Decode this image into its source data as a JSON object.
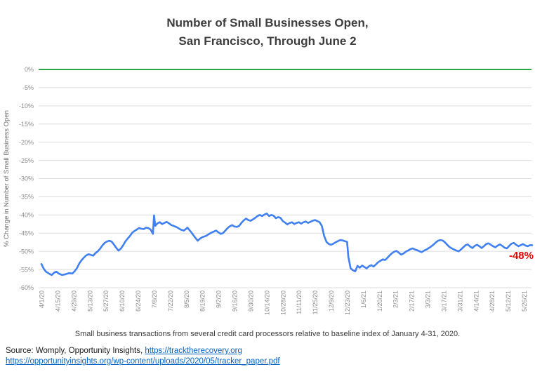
{
  "title": {
    "line1": "Number of Small Businesses Open,",
    "line2": "San Francisco, Through June 2"
  },
  "caption": "Small business transactions from several credit card processors relative to baseline index of January 4-31, 2020.",
  "source": {
    "prefix": "Source: Womply, Opportunity Insights, ",
    "link1": "https://tracktherecovery.org",
    "link2": "https://opportunityinsights.org/wp-content/uploads/2020/05/tracker_paper.pdf"
  },
  "chart_data": {
    "type": "line",
    "title": "Number of Small Businesses Open, San Francisco, Through June 2",
    "ylabel": "% Change in Number of Small Business Open",
    "xlabel": "",
    "ylim": [
      -60,
      0
    ],
    "grid": true,
    "legend": false,
    "line_color": "#4080f0",
    "zero_line_color": "#2aa84a",
    "grid_color": "#dcdcdc",
    "axis_text_color": "#8c8c8c",
    "annotation": {
      "text": "-48%",
      "color": "#ee0000"
    },
    "x_start": "4/1/20",
    "x_end": "6/2/21",
    "ytick_labels": [
      "0%",
      "-5%",
      "-10%",
      "-15%",
      "-20%",
      "-25%",
      "-30%",
      "-35%",
      "-40%",
      "-45%",
      "-50%",
      "-55%",
      "-60%"
    ],
    "xtick_labels": [
      "4/1/20",
      "4/15/20",
      "4/29/20",
      "5/13/20",
      "5/27/20",
      "6/10/20",
      "6/24/20",
      "7/8/20",
      "7/22/20",
      "8/5/20",
      "8/19/20",
      "9/2/20",
      "9/16/20",
      "9/30/20",
      "10/14/20",
      "10/28/20",
      "11/11/20",
      "11/25/20",
      "12/9/20",
      "12/23/20",
      "1/6/21",
      "1/20/21",
      "2/3/21",
      "2/17/21",
      "3/3/21",
      "3/17/21",
      "3/31/21",
      "4/14/21",
      "4/28/21",
      "5/12/21",
      "5/26/21"
    ],
    "series": [
      {
        "name": "San Francisco",
        "points": [
          [
            "4/1/20",
            -53.5
          ],
          [
            "4/3/20",
            -54.8
          ],
          [
            "4/5/20",
            -55.6
          ],
          [
            "4/8/20",
            -56.2
          ],
          [
            "4/10/20",
            -56.5
          ],
          [
            "4/12/20",
            -55.9
          ],
          [
            "4/14/20",
            -55.6
          ],
          [
            "4/16/20",
            -56.1
          ],
          [
            "4/19/20",
            -56.5
          ],
          [
            "4/22/20",
            -56.3
          ],
          [
            "4/25/20",
            -56.0
          ],
          [
            "4/28/20",
            -56.1
          ],
          [
            "4/30/20",
            -55.4
          ],
          [
            "5/2/20",
            -54.6
          ],
          [
            "5/4/20",
            -53.3
          ],
          [
            "5/6/20",
            -52.4
          ],
          [
            "5/8/20",
            -51.7
          ],
          [
            "5/10/20",
            -51.1
          ],
          [
            "5/12/20",
            -50.8
          ],
          [
            "5/14/20",
            -51.0
          ],
          [
            "5/16/20",
            -51.2
          ],
          [
            "5/18/20",
            -50.5
          ],
          [
            "5/20/20",
            -50.0
          ],
          [
            "5/22/20",
            -49.3
          ],
          [
            "5/24/20",
            -48.4
          ],
          [
            "5/26/20",
            -47.7
          ],
          [
            "5/28/20",
            -47.3
          ],
          [
            "5/30/20",
            -47.1
          ],
          [
            "6/1/20",
            -47.3
          ],
          [
            "6/3/20",
            -48.1
          ],
          [
            "6/5/20",
            -49.0
          ],
          [
            "6/7/20",
            -49.8
          ],
          [
            "6/9/20",
            -49.3
          ],
          [
            "6/11/20",
            -48.4
          ],
          [
            "6/13/20",
            -47.3
          ],
          [
            "6/15/20",
            -46.5
          ],
          [
            "6/17/20",
            -45.8
          ],
          [
            "6/19/20",
            -44.9
          ],
          [
            "6/21/20",
            -44.4
          ],
          [
            "6/23/20",
            -44.0
          ],
          [
            "6/25/20",
            -43.6
          ],
          [
            "6/27/20",
            -43.8
          ],
          [
            "6/29/20",
            -43.9
          ],
          [
            "7/1/20",
            -43.5
          ],
          [
            "7/3/20",
            -43.6
          ],
          [
            "7/5/20",
            -44.0
          ],
          [
            "7/7/20",
            -45.2
          ],
          [
            "7/8/20",
            -40.1
          ],
          [
            "7/9/20",
            -43.0
          ],
          [
            "7/11/20",
            -42.3
          ],
          [
            "7/13/20",
            -42.0
          ],
          [
            "7/15/20",
            -42.5
          ],
          [
            "7/17/20",
            -42.2
          ],
          [
            "7/19/20",
            -41.9
          ],
          [
            "7/21/20",
            -42.3
          ],
          [
            "7/23/20",
            -42.8
          ],
          [
            "7/25/20",
            -43.0
          ],
          [
            "7/28/20",
            -43.4
          ],
          [
            "7/31/20",
            -44.0
          ],
          [
            "8/3/20",
            -44.3
          ],
          [
            "8/6/20",
            -43.5
          ],
          [
            "8/9/20",
            -44.6
          ],
          [
            "8/12/20",
            -45.9
          ],
          [
            "8/15/20",
            -47.1
          ],
          [
            "8/17/20",
            -46.5
          ],
          [
            "8/19/20",
            -46.1
          ],
          [
            "8/22/20",
            -45.8
          ],
          [
            "8/25/20",
            -45.2
          ],
          [
            "8/28/20",
            -44.7
          ],
          [
            "8/31/20",
            -44.3
          ],
          [
            "9/2/20",
            -44.8
          ],
          [
            "9/4/20",
            -45.2
          ],
          [
            "9/6/20",
            -45.0
          ],
          [
            "9/8/20",
            -44.3
          ],
          [
            "9/10/20",
            -43.6
          ],
          [
            "9/12/20",
            -43.1
          ],
          [
            "9/14/20",
            -42.8
          ],
          [
            "9/16/20",
            -43.2
          ],
          [
            "9/18/20",
            -43.3
          ],
          [
            "9/20/20",
            -43.0
          ],
          [
            "9/22/20",
            -42.2
          ],
          [
            "9/24/20",
            -41.5
          ],
          [
            "9/26/20",
            -41.0
          ],
          [
            "9/28/20",
            -41.4
          ],
          [
            "9/30/20",
            -41.6
          ],
          [
            "10/2/20",
            -41.2
          ],
          [
            "10/4/20",
            -40.8
          ],
          [
            "10/6/20",
            -40.3
          ],
          [
            "10/8/20",
            -40.0
          ],
          [
            "10/10/20",
            -40.3
          ],
          [
            "10/12/20",
            -39.9
          ],
          [
            "10/14/20",
            -39.6
          ],
          [
            "10/16/20",
            -40.3
          ],
          [
            "10/18/20",
            -40.0
          ],
          [
            "10/20/20",
            -40.2
          ],
          [
            "10/22/20",
            -40.9
          ],
          [
            "10/24/20",
            -40.6
          ],
          [
            "10/26/20",
            -40.8
          ],
          [
            "10/28/20",
            -41.7
          ],
          [
            "10/30/20",
            -42.1
          ],
          [
            "11/1/20",
            -42.6
          ],
          [
            "11/3/20",
            -42.2
          ],
          [
            "11/5/20",
            -42.0
          ],
          [
            "11/7/20",
            -42.5
          ],
          [
            "11/9/20",
            -42.2
          ],
          [
            "11/11/20",
            -42.0
          ],
          [
            "11/13/20",
            -42.4
          ],
          [
            "11/15/20",
            -42.0
          ],
          [
            "11/17/20",
            -41.8
          ],
          [
            "11/19/20",
            -42.2
          ],
          [
            "11/21/20",
            -41.9
          ],
          [
            "11/23/20",
            -41.6
          ],
          [
            "11/25/20",
            -41.4
          ],
          [
            "11/27/20",
            -41.7
          ],
          [
            "11/29/20",
            -42.0
          ],
          [
            "12/1/20",
            -43.0
          ],
          [
            "12/3/20",
            -45.8
          ],
          [
            "12/5/20",
            -47.4
          ],
          [
            "12/7/20",
            -48.0
          ],
          [
            "12/9/20",
            -48.2
          ],
          [
            "12/11/20",
            -47.9
          ],
          [
            "12/13/20",
            -47.5
          ],
          [
            "12/15/20",
            -47.2
          ],
          [
            "12/17/20",
            -46.9
          ],
          [
            "12/19/20",
            -47.0
          ],
          [
            "12/21/20",
            -47.2
          ],
          [
            "12/23/20",
            -47.4
          ],
          [
            "12/24/20",
            -51.5
          ],
          [
            "12/26/20",
            -54.7
          ],
          [
            "12/28/20",
            -55.2
          ],
          [
            "12/30/20",
            -55.5
          ],
          [
            "1/1/21",
            -54.0
          ],
          [
            "1/3/21",
            -54.5
          ],
          [
            "1/5/21",
            -53.9
          ],
          [
            "1/7/21",
            -54.3
          ],
          [
            "1/9/21",
            -54.7
          ],
          [
            "1/11/21",
            -54.1
          ],
          [
            "1/13/21",
            -53.8
          ],
          [
            "1/15/21",
            -54.2
          ],
          [
            "1/17/21",
            -53.6
          ],
          [
            "1/19/21",
            -53.0
          ],
          [
            "1/21/21",
            -52.6
          ],
          [
            "1/23/21",
            -52.2
          ],
          [
            "1/25/21",
            -52.4
          ],
          [
            "1/27/21",
            -51.8
          ],
          [
            "1/29/21",
            -51.1
          ],
          [
            "1/31/21",
            -50.5
          ],
          [
            "2/2/21",
            -50.1
          ],
          [
            "2/4/21",
            -49.9
          ],
          [
            "2/6/21",
            -50.4
          ],
          [
            "2/8/21",
            -50.9
          ],
          [
            "2/10/21",
            -50.6
          ],
          [
            "2/12/21",
            -50.1
          ],
          [
            "2/14/21",
            -49.8
          ],
          [
            "2/16/21",
            -49.4
          ],
          [
            "2/18/21",
            -49.2
          ],
          [
            "2/20/21",
            -49.5
          ],
          [
            "2/22/21",
            -49.7
          ],
          [
            "2/24/21",
            -50.0
          ],
          [
            "2/26/21",
            -50.2
          ],
          [
            "2/28/21",
            -49.8
          ],
          [
            "3/2/21",
            -49.5
          ],
          [
            "3/4/21",
            -49.1
          ],
          [
            "3/6/21",
            -48.7
          ],
          [
            "3/8/21",
            -48.2
          ],
          [
            "3/10/21",
            -47.6
          ],
          [
            "3/12/21",
            -47.1
          ],
          [
            "3/14/21",
            -46.9
          ],
          [
            "3/16/21",
            -47.0
          ],
          [
            "3/18/21",
            -47.5
          ],
          [
            "3/20/21",
            -48.2
          ],
          [
            "3/22/21",
            -48.8
          ],
          [
            "3/24/21",
            -49.2
          ],
          [
            "3/26/21",
            -49.5
          ],
          [
            "3/28/21",
            -49.8
          ],
          [
            "3/30/21",
            -50.0
          ],
          [
            "4/1/21",
            -49.5
          ],
          [
            "4/3/21",
            -48.9
          ],
          [
            "4/5/21",
            -48.3
          ],
          [
            "4/7/21",
            -48.1
          ],
          [
            "4/9/21",
            -48.7
          ],
          [
            "4/11/21",
            -49.1
          ],
          [
            "4/13/21",
            -48.5
          ],
          [
            "4/15/21",
            -48.2
          ],
          [
            "4/17/21",
            -48.6
          ],
          [
            "4/19/21",
            -49.1
          ],
          [
            "4/21/21",
            -48.6
          ],
          [
            "4/23/21",
            -48.0
          ],
          [
            "4/25/21",
            -47.8
          ],
          [
            "4/27/21",
            -48.2
          ],
          [
            "4/29/21",
            -48.6
          ],
          [
            "5/1/21",
            -48.9
          ],
          [
            "5/3/21",
            -48.4
          ],
          [
            "5/5/21",
            -48.1
          ],
          [
            "5/7/21",
            -48.5
          ],
          [
            "5/9/21",
            -49.0
          ],
          [
            "5/11/21",
            -49.2
          ],
          [
            "5/13/21",
            -48.5
          ],
          [
            "5/15/21",
            -47.9
          ],
          [
            "5/17/21",
            -47.7
          ],
          [
            "5/19/21",
            -48.2
          ],
          [
            "5/21/21",
            -48.6
          ],
          [
            "5/23/21",
            -48.3
          ],
          [
            "5/25/21",
            -48.0
          ],
          [
            "5/27/21",
            -48.4
          ],
          [
            "5/29/21",
            -48.6
          ],
          [
            "5/31/21",
            -48.3
          ],
          [
            "6/2/21",
            -48.3
          ]
        ]
      }
    ]
  }
}
